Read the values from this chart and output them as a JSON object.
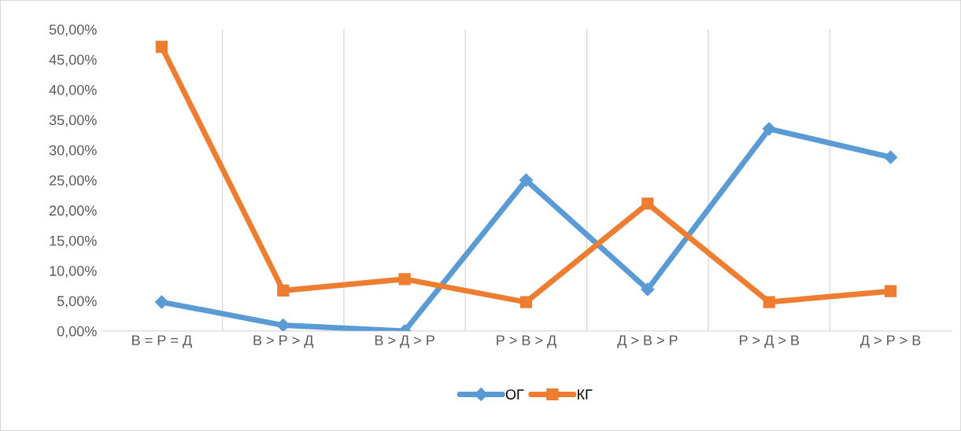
{
  "chart_data": {
    "type": "line",
    "categories": [
      "В = Р = Д",
      "В > Р > Д",
      "В > Д > Р",
      "Р > В > Д",
      "Д > В > Р",
      "Р > Д > В",
      "Д > Р > В"
    ],
    "series": [
      {
        "name": "ОГ",
        "color": "#5b9bd5",
        "marker": "diamond",
        "values": [
          4.8,
          0.95,
          0,
          25,
          6.9,
          33.5,
          28.8
        ]
      },
      {
        "name": "КГ",
        "color": "#ed7d31",
        "marker": "square",
        "values": [
          47.1,
          6.7,
          8.6,
          4.8,
          21.1,
          4.8,
          6.6
        ]
      }
    ],
    "ylim": [
      0,
      50
    ],
    "yticks": [
      {
        "value": 0,
        "label": "0,00%"
      },
      {
        "value": 5,
        "label": "5,00%"
      },
      {
        "value": 10,
        "label": "10,00%"
      },
      {
        "value": 15,
        "label": "15,00%"
      },
      {
        "value": 20,
        "label": "20,00%"
      },
      {
        "value": 25,
        "label": "25,00%"
      },
      {
        "value": 30,
        "label": "30,00%"
      },
      {
        "value": 35,
        "label": "35,00%"
      },
      {
        "value": 40,
        "label": "40,00%"
      },
      {
        "value": 45,
        "label": "45,00%"
      },
      {
        "value": 50,
        "label": "50,00%"
      }
    ],
    "grid": "x",
    "legend": "bottom",
    "line_style": "solid"
  }
}
